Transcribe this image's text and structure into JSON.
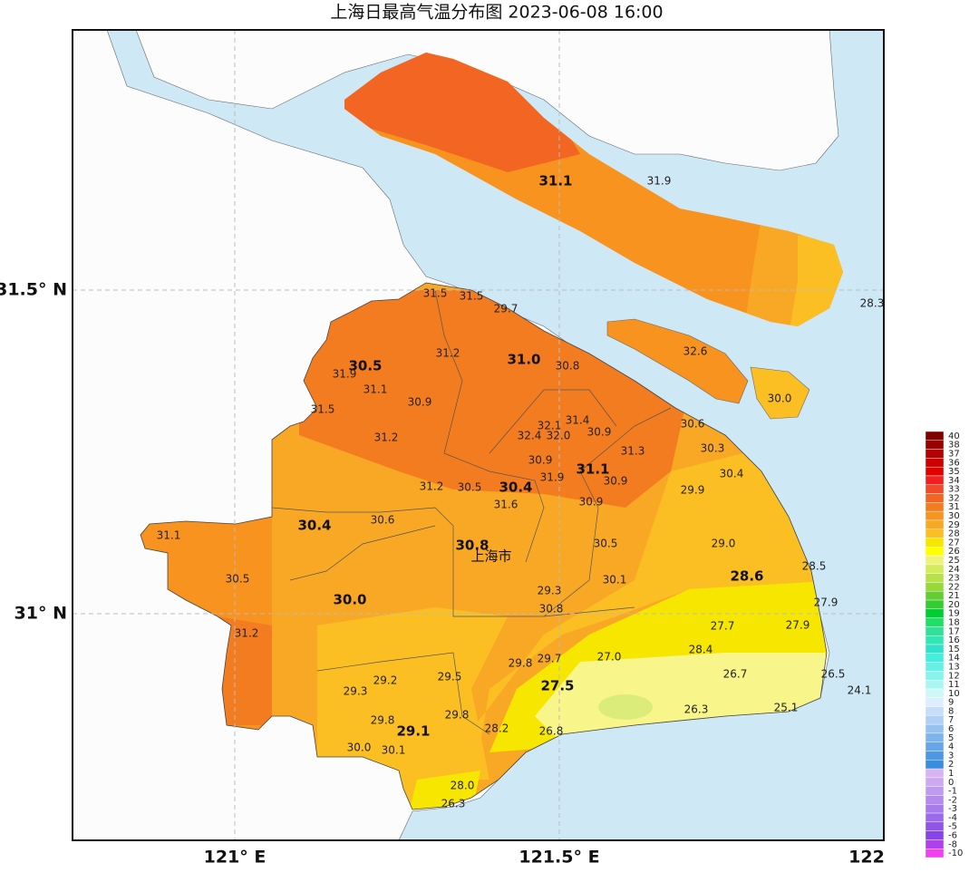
{
  "title": "上海日最高气温分布图 2023-06-08 16:00",
  "axes": {
    "y_labels": [
      "31.5° N",
      "31° N"
    ],
    "x_labels": [
      "121° E",
      "121.5° E",
      "122"
    ]
  },
  "city_label": "上海市",
  "stations": [
    {
      "label": "31.1",
      "bold": true
    },
    {
      "label": "31.9",
      "bold": false
    },
    {
      "label": "28.3",
      "bold": false
    },
    {
      "label": "32.6",
      "bold": false
    },
    {
      "label": "30.0",
      "bold": false
    },
    {
      "label": "31.5",
      "bold": false
    },
    {
      "label": "31.5",
      "bold": false
    },
    {
      "label": "29.7",
      "bold": false
    },
    {
      "label": "30.5",
      "bold": true
    },
    {
      "label": "31.9",
      "bold": false
    },
    {
      "label": "31.2",
      "bold": false
    },
    {
      "label": "31.0",
      "bold": true
    },
    {
      "label": "30.8",
      "bold": false
    },
    {
      "label": "31.1",
      "bold": false
    },
    {
      "label": "30.9",
      "bold": false
    },
    {
      "label": "31.5",
      "bold": false
    },
    {
      "label": "32.1",
      "bold": false
    },
    {
      "label": "31.4",
      "bold": false
    },
    {
      "label": "32.4",
      "bold": false
    },
    {
      "label": "32.0",
      "bold": false
    },
    {
      "label": "30.9",
      "bold": false
    },
    {
      "label": "30.6",
      "bold": false
    },
    {
      "label": "31.2",
      "bold": false
    },
    {
      "label": "31.3",
      "bold": false
    },
    {
      "label": "30.3",
      "bold": false
    },
    {
      "label": "30.9",
      "bold": false
    },
    {
      "label": "31.1",
      "bold": true
    },
    {
      "label": "31.9",
      "bold": false
    },
    {
      "label": "30.9",
      "bold": false
    },
    {
      "label": "30.4",
      "bold": false
    },
    {
      "label": "31.2",
      "bold": false
    },
    {
      "label": "30.5",
      "bold": false
    },
    {
      "label": "30.4",
      "bold": true
    },
    {
      "label": "29.9",
      "bold": false
    },
    {
      "label": "31.6",
      "bold": false
    },
    {
      "label": "30.9",
      "bold": false
    },
    {
      "label": "30.4",
      "bold": true
    },
    {
      "label": "30.6",
      "bold": false
    },
    {
      "label": "31.1",
      "bold": false
    },
    {
      "label": "30.8",
      "bold": true
    },
    {
      "label": "30.5",
      "bold": false
    },
    {
      "label": "29.0",
      "bold": false
    },
    {
      "label": "28.5",
      "bold": false
    },
    {
      "label": "28.6",
      "bold": true
    },
    {
      "label": "30.5",
      "bold": false
    },
    {
      "label": "30.1",
      "bold": false
    },
    {
      "label": "29.3",
      "bold": false
    },
    {
      "label": "30.0",
      "bold": true
    },
    {
      "label": "27.9",
      "bold": false
    },
    {
      "label": "30.8",
      "bold": false
    },
    {
      "label": "27.7",
      "bold": false
    },
    {
      "label": "27.9",
      "bold": false
    },
    {
      "label": "31.2",
      "bold": false
    },
    {
      "label": "28.4",
      "bold": false
    },
    {
      "label": "27.0",
      "bold": false
    },
    {
      "label": "29.8",
      "bold": false
    },
    {
      "label": "29.7",
      "bold": false
    },
    {
      "label": "26.7",
      "bold": false
    },
    {
      "label": "26.5",
      "bold": false
    },
    {
      "label": "29.2",
      "bold": false
    },
    {
      "label": "29.5",
      "bold": false
    },
    {
      "label": "27.5",
      "bold": true
    },
    {
      "label": "24.1",
      "bold": false
    },
    {
      "label": "29.3",
      "bold": false
    },
    {
      "label": "26.3",
      "bold": false
    },
    {
      "label": "25.1",
      "bold": false
    },
    {
      "label": "29.8",
      "bold": false
    },
    {
      "label": "29.8",
      "bold": false
    },
    {
      "label": "29.1",
      "bold": true
    },
    {
      "label": "28.2",
      "bold": false
    },
    {
      "label": "26.8",
      "bold": false
    },
    {
      "label": "30.0",
      "bold": false
    },
    {
      "label": "30.1",
      "bold": false
    },
    {
      "label": "28.0",
      "bold": false
    },
    {
      "label": "26.3",
      "bold": false
    }
  ],
  "colorbar": {
    "labels": [
      40,
      38,
      37,
      36,
      35,
      34,
      33,
      32,
      31,
      30,
      29,
      28,
      27,
      26,
      25,
      24,
      23,
      22,
      21,
      20,
      19,
      18,
      17,
      16,
      15,
      14,
      13,
      12,
      11,
      10,
      9,
      8,
      7,
      6,
      5,
      4,
      3,
      2,
      1,
      0,
      -1,
      -2,
      -3,
      -4,
      -5,
      -6,
      -8,
      -10
    ],
    "colors": [
      "#800000",
      "#990000",
      "#b30000",
      "#cc0000",
      "#e00000",
      "#f02020",
      "#f04a2a",
      "#f26522",
      "#f47c20",
      "#f7931e",
      "#f9a825",
      "#fbbf24",
      "#f7e600",
      "#ffff00",
      "#eef27a",
      "#d4ec5a",
      "#b8e04a",
      "#98d83a",
      "#66cc33",
      "#33cc33",
      "#00cc33",
      "#22dd66",
      "#33e099",
      "#33e6b3",
      "#33e0cc",
      "#44eedd",
      "#66f0e6",
      "#88f4ee",
      "#aaf6f2",
      "#ccf8f8",
      "#ddeeff",
      "#c6def8",
      "#aed0f4",
      "#96c2f0",
      "#7eb4ec",
      "#66a6e8",
      "#4e98e4",
      "#3a8ee0",
      "#d8b4f4",
      "#ccaaf2",
      "#c09af0",
      "#b48aee",
      "#a87aec",
      "#9c6aea",
      "#9055e8",
      "#8444e6",
      "#b040ee",
      "#f040f0"
    ]
  }
}
